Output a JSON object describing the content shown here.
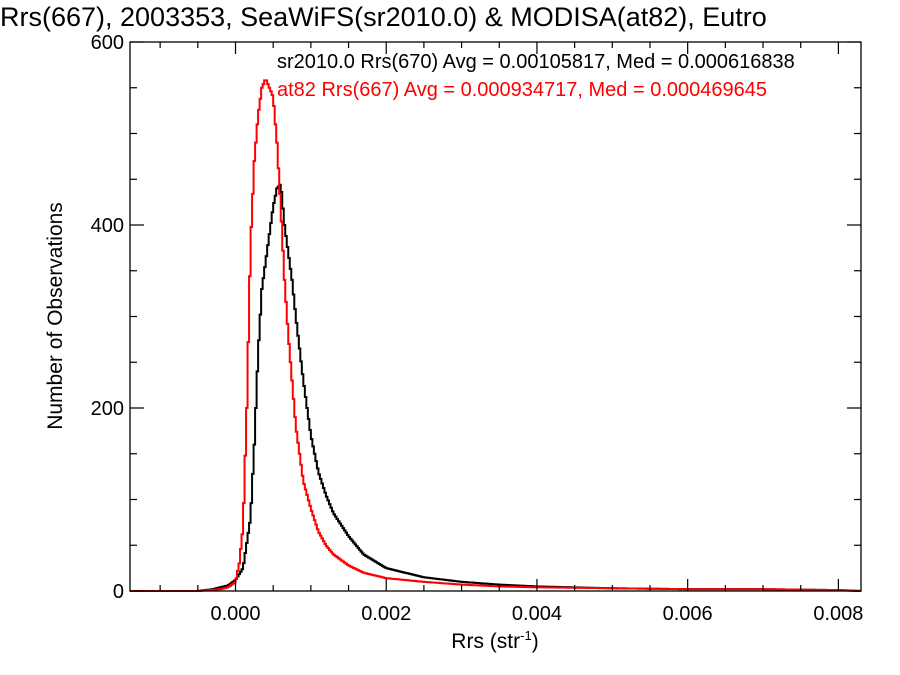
{
  "chart_data": {
    "type": "line",
    "title": "Rrs(667), 2003353, SeaWiFS(sr2010.0) & MODISA(at82), Eutro",
    "xlabel": "Rrs (str",
    "xlabel_sup": "-1",
    "xlabel_close": ")",
    "ylabel": "Number of Observations",
    "xlim": [
      -0.0014,
      0.0083
    ],
    "ylim": [
      0,
      600
    ],
    "x_ticks": [
      0.0,
      0.002,
      0.004,
      0.006,
      0.008
    ],
    "x_tick_labels": [
      "0.000",
      "0.002",
      "0.004",
      "0.006",
      "0.008"
    ],
    "y_ticks": [
      0,
      200,
      400,
      600
    ],
    "y_tick_labels": [
      "0",
      "200",
      "400",
      "600"
    ],
    "grid": false,
    "legend_placement": "top-right",
    "series": [
      {
        "name": "sr2010.0 Rrs(670) Avg = 0.00105817, Med = 0.000616838",
        "color": "#000000",
        "x": [
          -0.0014,
          -0.0005,
          -0.0003,
          -0.0002,
          -0.0001,
          0.0,
          0.0001,
          0.0002,
          0.00025,
          0.0003,
          0.00035,
          0.0004,
          0.00045,
          0.0005,
          0.00055,
          0.0006,
          0.00065,
          0.0007,
          0.00075,
          0.0008,
          0.0009,
          0.001,
          0.0011,
          0.0012,
          0.0013,
          0.0015,
          0.0017,
          0.002,
          0.0025,
          0.003,
          0.0035,
          0.004,
          0.005,
          0.006,
          0.007,
          0.008,
          0.0083
        ],
        "y": [
          0,
          0,
          2,
          4,
          6,
          12,
          25,
          80,
          160,
          260,
          330,
          360,
          390,
          420,
          440,
          445,
          400,
          370,
          340,
          300,
          230,
          170,
          130,
          105,
          85,
          60,
          40,
          25,
          15,
          10,
          7,
          5,
          3,
          2,
          2,
          1,
          0
        ]
      },
      {
        "name": "at82 Rrs(667) Avg = 0.000934717, Med = 0.000469645",
        "color": "#ff0000",
        "x": [
          -0.0014,
          -0.0005,
          -0.0002,
          -0.0001,
          0.0,
          5e-05,
          0.0001,
          0.00015,
          0.0002,
          0.00025,
          0.0003,
          0.00035,
          0.0004,
          0.00045,
          0.0005,
          0.00055,
          0.0006,
          0.00065,
          0.0007,
          0.00075,
          0.0008,
          0.0009,
          0.001,
          0.0011,
          0.0012,
          0.0013,
          0.0015,
          0.0017,
          0.002,
          0.0025,
          0.003,
          0.0035,
          0.004,
          0.005,
          0.006,
          0.007,
          0.008,
          0.0083
        ],
        "y": [
          0,
          0,
          2,
          4,
          10,
          30,
          70,
          200,
          380,
          470,
          520,
          550,
          560,
          550,
          540,
          490,
          420,
          340,
          280,
          230,
          180,
          120,
          90,
          65,
          50,
          40,
          28,
          20,
          14,
          10,
          7,
          5,
          4,
          3,
          2,
          2,
          1,
          0
        ]
      }
    ]
  }
}
